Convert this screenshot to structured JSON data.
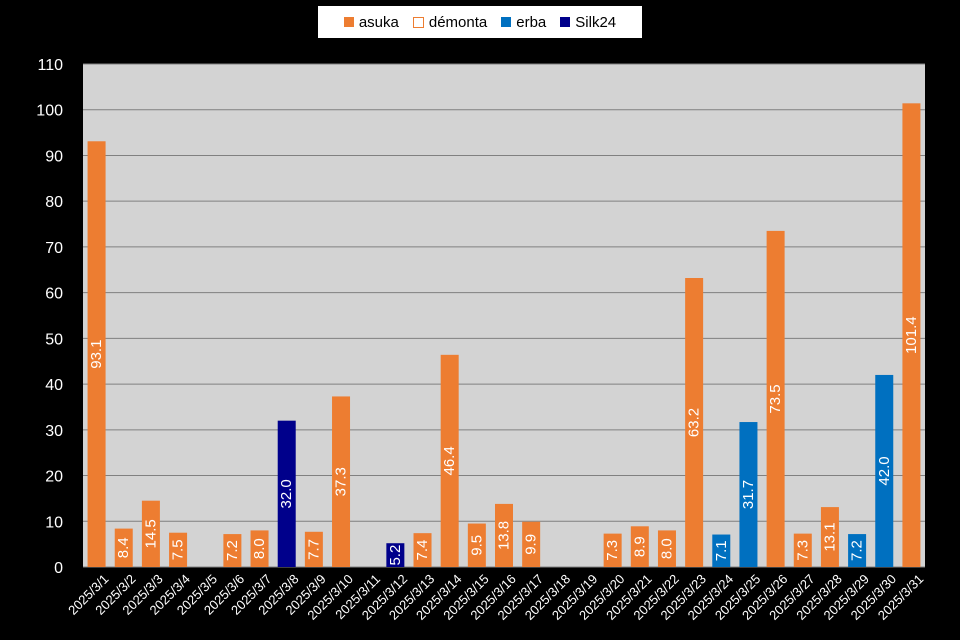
{
  "chart_data": {
    "type": "bar",
    "title": "",
    "xlabel": "",
    "ylabel": "",
    "ylim": [
      0,
      110
    ],
    "yticks": [
      0,
      10,
      20,
      30,
      40,
      50,
      60,
      70,
      80,
      90,
      100,
      110
    ],
    "grid": true,
    "legend_position": "top",
    "categories": [
      "2025/3/1",
      "2025/3/2",
      "2025/3/3",
      "2025/3/4",
      "2025/3/5",
      "2025/3/6",
      "2025/3/7",
      "2025/3/8",
      "2025/3/9",
      "2025/3/10",
      "2025/3/11",
      "2025/3/12",
      "2025/3/13",
      "2025/3/14",
      "2025/3/15",
      "2025/3/16",
      "2025/3/17",
      "2025/3/18",
      "2025/3/19",
      "2025/3/20",
      "2025/3/21",
      "2025/3/22",
      "2025/3/23",
      "2025/3/24",
      "2025/3/25",
      "2025/3/26",
      "2025/3/27",
      "2025/3/28",
      "2025/3/29",
      "2025/3/30",
      "2025/3/31"
    ],
    "series": [
      {
        "name": "asuka",
        "color": "#ED7D31",
        "legend_style": "filled",
        "values": [
          93.1,
          8.4,
          14.5,
          7.5,
          null,
          7.2,
          8.0,
          null,
          7.7,
          37.3,
          null,
          null,
          7.4,
          46.4,
          9.5,
          13.8,
          9.9,
          null,
          null,
          7.3,
          8.9,
          8.0,
          63.2,
          null,
          null,
          73.5,
          7.3,
          13.1,
          null,
          null,
          101.4
        ]
      },
      {
        "name": "démonta",
        "color": "#ED7D31",
        "legend_style": "outline",
        "values": [
          null,
          null,
          null,
          null,
          null,
          null,
          null,
          null,
          null,
          null,
          null,
          null,
          null,
          null,
          null,
          null,
          null,
          null,
          null,
          null,
          null,
          null,
          null,
          null,
          null,
          null,
          null,
          null,
          null,
          null,
          null
        ]
      },
      {
        "name": "erba",
        "color": "#0070C0",
        "legend_style": "filled",
        "values": [
          null,
          null,
          null,
          null,
          null,
          null,
          null,
          null,
          null,
          null,
          null,
          null,
          null,
          null,
          null,
          null,
          null,
          null,
          null,
          null,
          null,
          null,
          null,
          7.1,
          31.7,
          null,
          null,
          null,
          7.2,
          42.0,
          null
        ]
      },
      {
        "name": "Silk24",
        "color": "#00008B",
        "legend_style": "filled",
        "values": [
          null,
          null,
          null,
          null,
          null,
          null,
          null,
          32.0,
          null,
          null,
          null,
          5.2,
          null,
          null,
          null,
          null,
          null,
          null,
          null,
          null,
          null,
          null,
          null,
          null,
          null,
          null,
          null,
          null,
          null,
          null,
          null
        ]
      }
    ],
    "plot_background": "#D3D3D3",
    "page_background": "#000000",
    "data_label_color": "#FFFFFF"
  }
}
